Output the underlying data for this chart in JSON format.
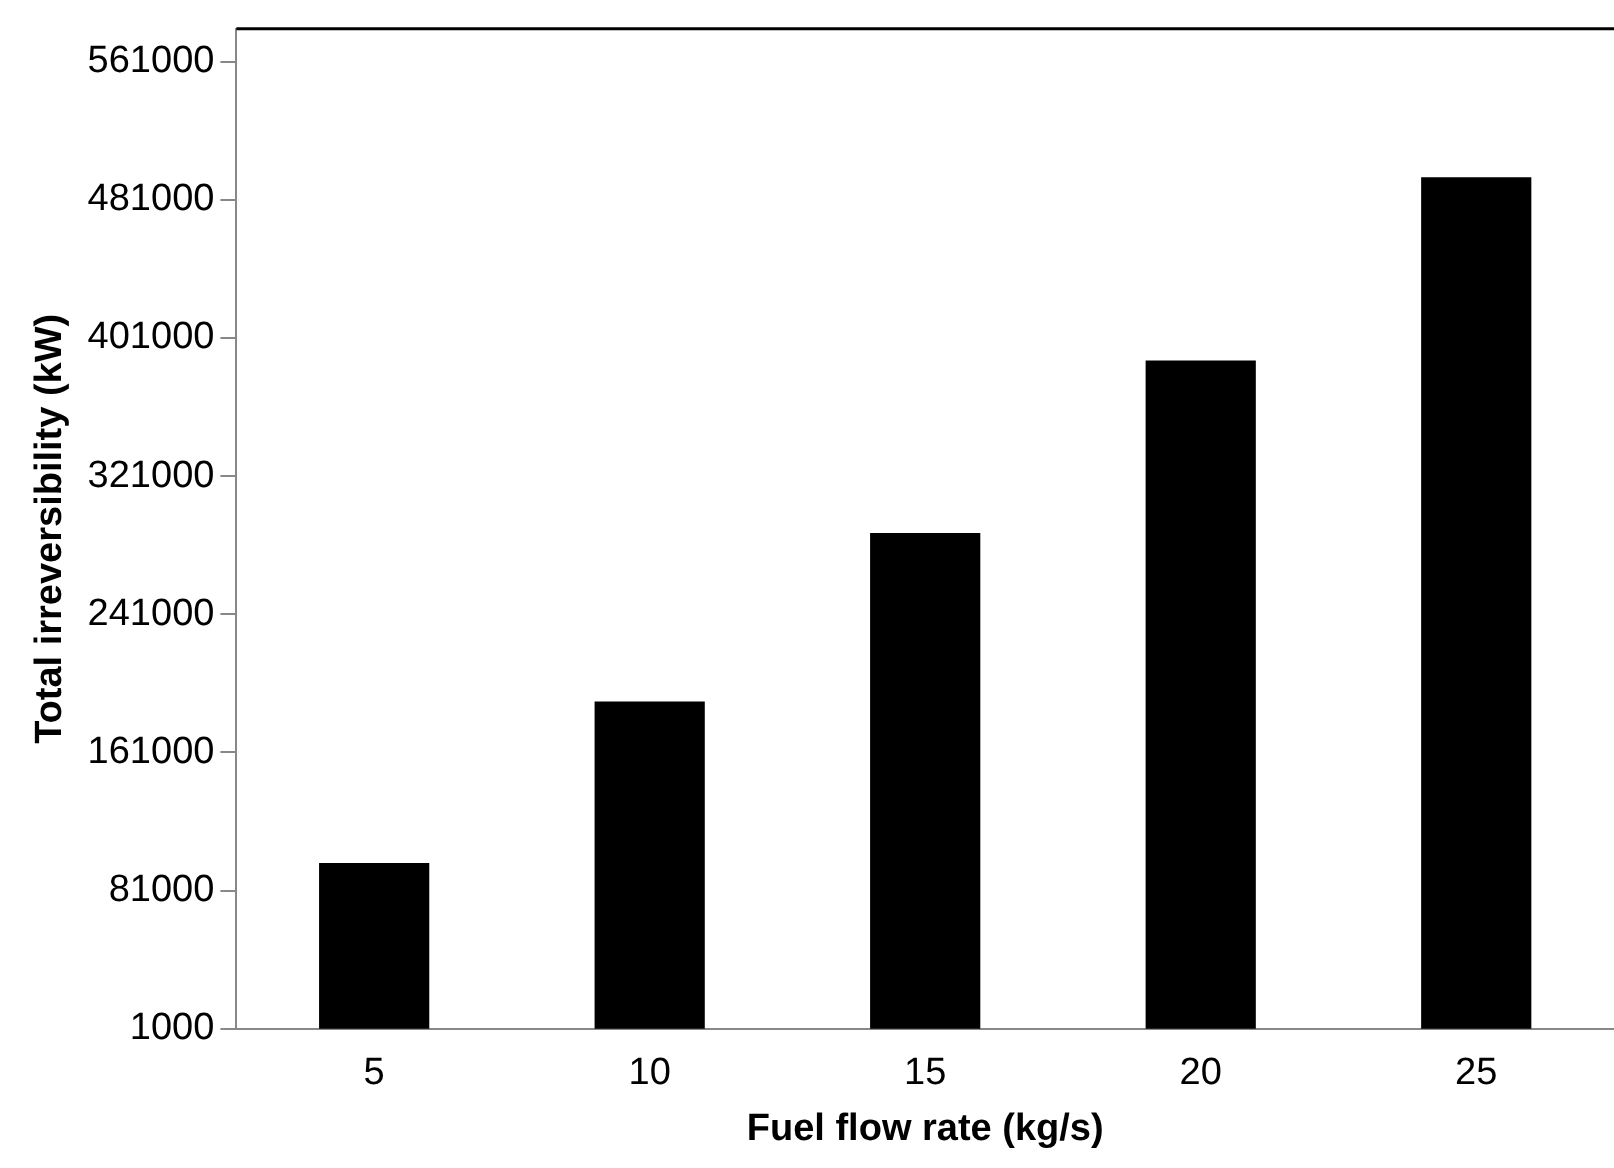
{
  "chart_data": {
    "type": "bar",
    "xlabel": "Fuel flow rate (kg/s)",
    "ylabel": "Total irreversibility (kW)",
    "categories": [
      "5",
      "10",
      "15",
      "20",
      "25"
    ],
    "values": [
      97000,
      190500,
      288000,
      388000,
      494000
    ],
    "color": "#000000",
    "ylim": [
      1000,
      580000
    ],
    "yticks": [
      1000,
      81000,
      161000,
      241000,
      321000,
      401000,
      481000,
      561000
    ],
    "grid": false,
    "legend": false
  }
}
